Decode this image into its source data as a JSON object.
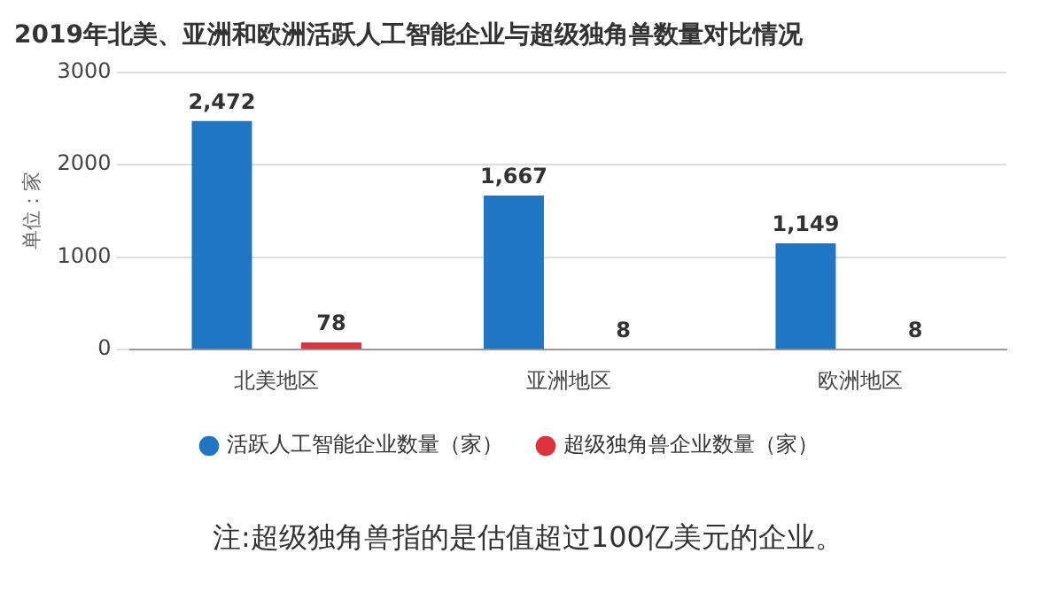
{
  "chart_data": {
    "type": "bar",
    "title": "2019年北美、亚洲和欧洲活跃人工智能企业与超级独角兽数量对比情况",
    "ylabel": "单位：家",
    "categories": [
      "北美地区",
      "亚洲地区",
      "欧洲地区"
    ],
    "series": [
      {
        "name": "活跃人工智能企业数量（家）",
        "color": "#1f77c4",
        "values": [
          2472,
          1667,
          1149
        ],
        "value_labels": [
          "2,472",
          "1,667",
          "1,149"
        ]
      },
      {
        "name": "超级独角兽企业数量（家）",
        "color": "#e0303c",
        "values": [
          78,
          8,
          8
        ],
        "value_labels": [
          "78",
          "8",
          "8"
        ]
      }
    ],
    "ylim": [
      0,
      3000
    ],
    "yticks": [
      0,
      1000,
      2000,
      3000
    ],
    "grid": "y",
    "legend": "bottom",
    "annotations": [
      "注:超级独角兽指的是估值超过100亿美元的企业。"
    ]
  }
}
